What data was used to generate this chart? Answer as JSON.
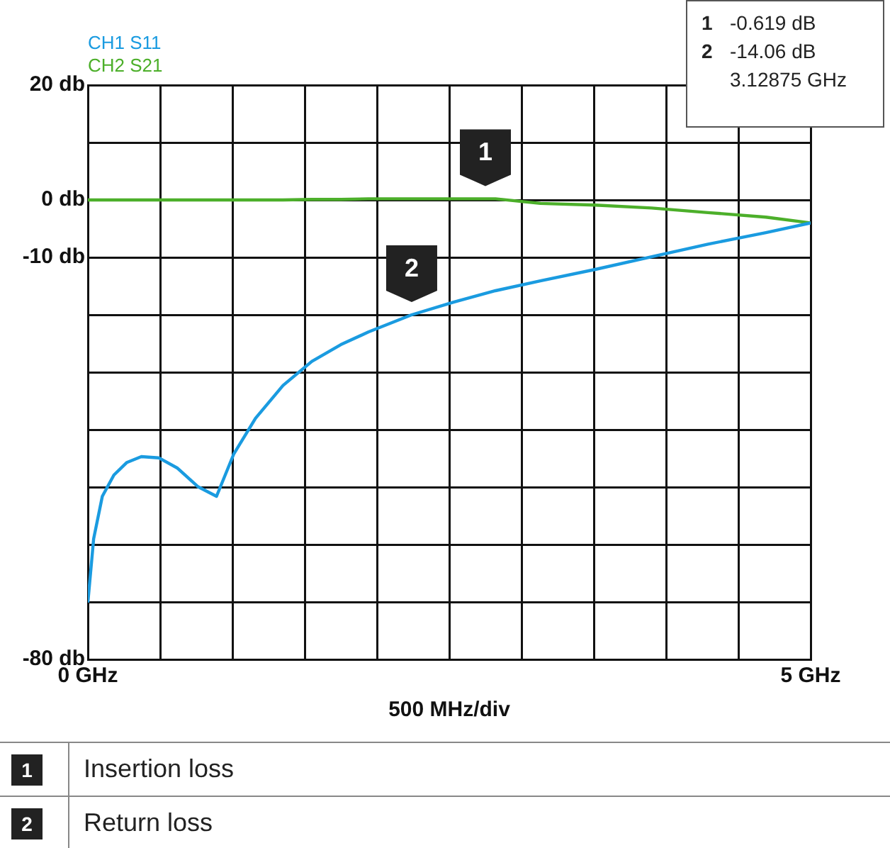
{
  "chart_data": {
    "type": "line",
    "x": [
      0,
      0.04,
      0.1,
      0.18,
      0.27,
      0.37,
      0.49,
      0.62,
      0.76,
      0.89,
      1.01,
      1.16,
      1.35,
      1.55,
      1.75,
      1.94,
      2.24,
      2.53,
      2.82,
      3.13,
      3.51,
      3.9,
      4.29,
      4.69,
      5
    ],
    "series": [
      {
        "name": "CH1 S11",
        "color": "#1a9be0",
        "values": [
          -70.1,
          -59,
          -51.6,
          -47.9,
          -45.7,
          -44.7,
          -44.9,
          -46.7,
          -49.9,
          -51.6,
          -44.2,
          -38,
          -32.3,
          -28.1,
          -25.2,
          -23,
          -20,
          -17.8,
          -15.8,
          -14.1,
          -12.1,
          -9.9,
          -7.7,
          -5.7,
          -4
        ]
      },
      {
        "name": "CH2 S21",
        "color": "#4caf2a",
        "values": [
          0,
          0,
          0,
          0,
          0,
          0,
          0,
          0,
          0,
          0,
          0,
          0,
          0,
          0.1,
          0.1,
          0.2,
          0.2,
          0.2,
          0.2,
          -0.6,
          -0.9,
          -1.4,
          -2.2,
          -3,
          -4
        ]
      }
    ],
    "xlim": [
      0,
      5
    ],
    "xticks": [
      {
        "value": 0,
        "label": "0 GHz"
      },
      {
        "value": 0.5,
        "label": null
      },
      {
        "value": 1,
        "label": null
      },
      {
        "value": 1.5,
        "label": null
      },
      {
        "value": 2,
        "label": null
      },
      {
        "value": 2.5,
        "label": null
      },
      {
        "value": 3,
        "label": null
      },
      {
        "value": 3.5,
        "label": null
      },
      {
        "value": 4,
        "label": null
      },
      {
        "value": 4.5,
        "label": null
      },
      {
        "value": 5,
        "label": "5 GHz"
      }
    ],
    "ylim": [
      -80,
      20
    ],
    "yticks": [
      {
        "value": 20,
        "label": "20 db"
      },
      {
        "value": 10,
        "label": null
      },
      {
        "value": 0,
        "label": "0 db"
      },
      {
        "value": -10,
        "label": "-10 db"
      },
      {
        "value": -20,
        "label": null
      },
      {
        "value": -30,
        "label": null
      },
      {
        "value": -40,
        "label": null
      },
      {
        "value": -50,
        "label": null
      },
      {
        "value": -60,
        "label": null
      },
      {
        "value": -70,
        "label": null
      },
      {
        "value": -80,
        "label": "-80 db"
      }
    ],
    "xlabel": "500 MHz/div",
    "grid": true,
    "legend": "top left",
    "marker": "none",
    "line_style": "solid",
    "annotations": [
      {
        "text": "1",
        "x": 2.75,
        "y": 0.2
      },
      {
        "text": "2",
        "x": 2.24,
        "y": -20
      },
      "1 -0.619 dB",
      "2 -14.06 dB",
      "3.12875 GHz",
      "1 Insertion loss",
      "2 Return loss"
    ]
  }
}
